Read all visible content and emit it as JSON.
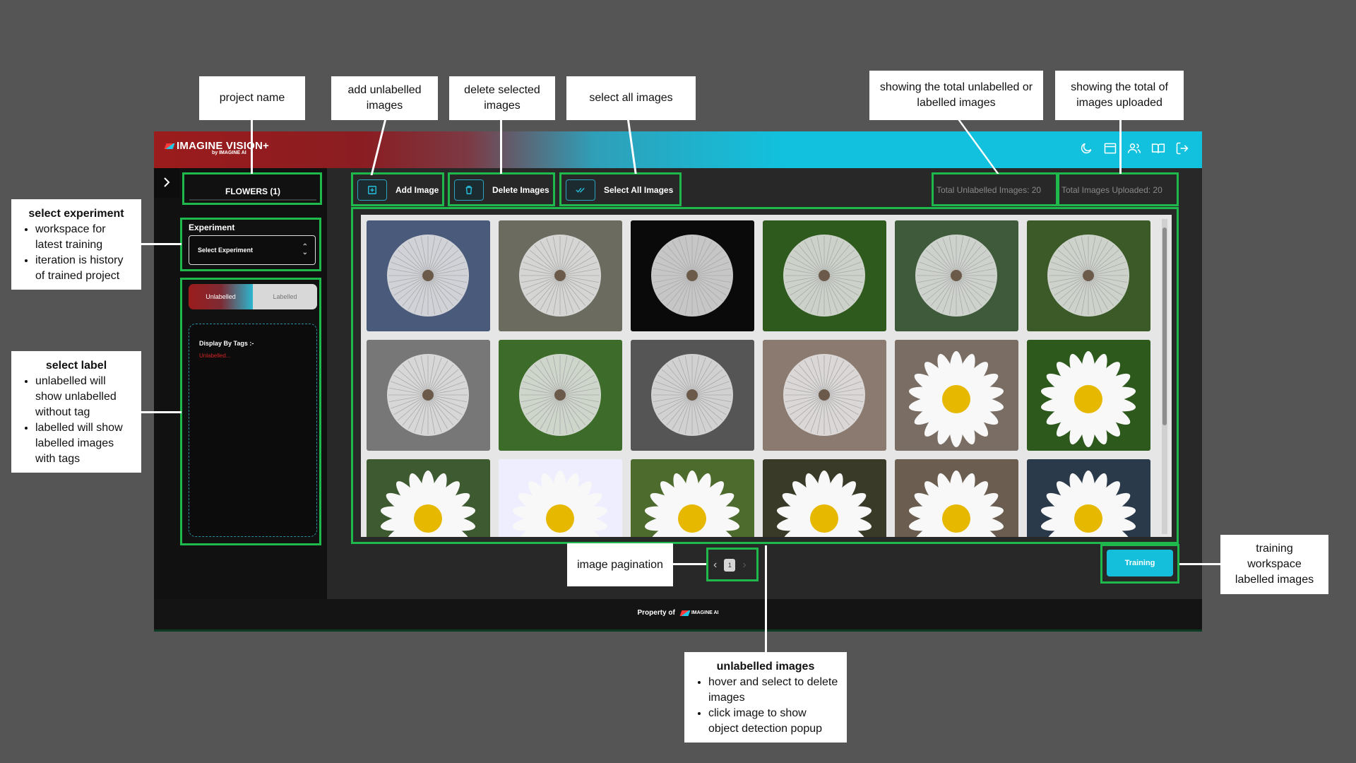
{
  "app": {
    "logo_text": "IMAGINE VISION+",
    "logo_sub": "by IMAGINE AI",
    "project_name": "FLOWERS (1)",
    "experiment_label": "Experiment",
    "experiment_placeholder": "Select Experiment",
    "toggle": {
      "unlabelled": "Unlabelled",
      "labelled": "Labelled"
    },
    "tags_title": "Display By Tags :-",
    "tags_item": "Unlabelled...",
    "toolbar": {
      "add_image": "Add Image",
      "delete_images": "Delete Images",
      "select_all": "Select All Images"
    },
    "stats": {
      "total_unlabelled": "Total Unlabelled Images: 20",
      "total_uploaded": "Total Images Uploaded: 20"
    },
    "pagination": {
      "current_page": "1"
    },
    "training_button": "Training",
    "footer": {
      "text": "Property of",
      "logo": "IMAGINE AI"
    },
    "top_icons": [
      "moon-icon",
      "window-icon",
      "users-icon",
      "book-icon",
      "logout-icon"
    ]
  },
  "annotations": {
    "project_name": "project name",
    "add_unlabelled": "add unlabelled images",
    "delete_selected": "delete selected images",
    "select_all": "select all images",
    "total_unlabelled": "showing the total unlabelled or labelled images",
    "total_uploaded": "showing the total of images uploaded",
    "select_experiment": {
      "title": "select experiment",
      "bullets": [
        "workspace for latest training",
        "iteration is history of trained project"
      ]
    },
    "select_label": {
      "title": "select label",
      "bullets": [
        "unlabelled will show unlabelled without tag",
        "labelled will show labelled images with tags"
      ]
    },
    "image_pagination": "image pagination",
    "training": "training workspace labelled images",
    "unlabelled_images": {
      "title": "unlabelled images",
      "bullets": [
        "hover and select to delete images",
        "click image to show object detection popup"
      ]
    }
  },
  "colors": {
    "accent": "#13bfdb",
    "brand_red": "#9b1c1c",
    "highlight": "#1fb84d"
  }
}
